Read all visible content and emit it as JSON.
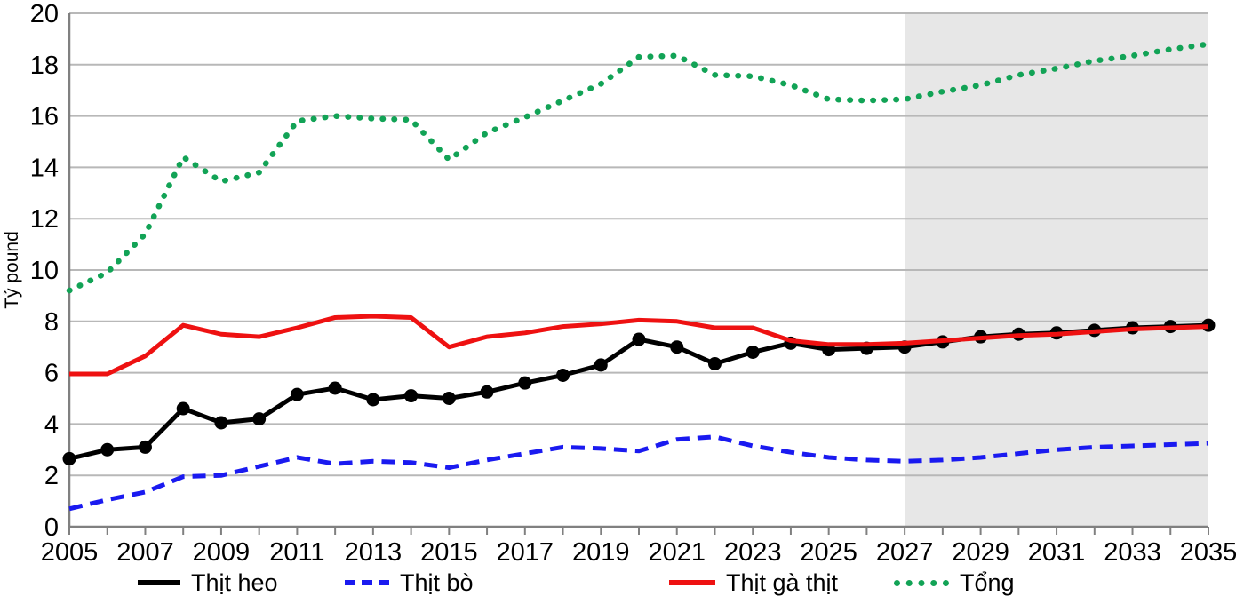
{
  "chart_data": {
    "type": "line",
    "title": "",
    "xlabel": "",
    "ylabel": "Tỷ pound",
    "ylim": [
      0,
      20
    ],
    "ytick_step": 2,
    "grid": true,
    "legend_position": "bottom",
    "x": [
      2005,
      2006,
      2007,
      2008,
      2009,
      2010,
      2011,
      2012,
      2013,
      2014,
      2015,
      2016,
      2017,
      2018,
      2019,
      2020,
      2021,
      2022,
      2023,
      2024,
      2025,
      2026,
      2027,
      2028,
      2029,
      2030,
      2031,
      2032,
      2033,
      2034,
      2035
    ],
    "xtick_labels": [
      "2005",
      "2007",
      "2009",
      "2011",
      "2013",
      "2015",
      "2017",
      "2019",
      "2021",
      "2023",
      "2025",
      "2027",
      "2029",
      "2031",
      "2033",
      "2035"
    ],
    "forecast_band": {
      "start": 2027,
      "end": 2035,
      "color": "#E7E7E7"
    },
    "axis_color": "#808080",
    "gridline_color": "#B8B8B8",
    "series": [
      {
        "name": "Thịt heo",
        "color": "#000000",
        "style": "solid-marker",
        "values": [
          2.65,
          3.0,
          3.1,
          4.6,
          4.05,
          4.2,
          5.15,
          5.4,
          4.95,
          5.1,
          5.0,
          5.25,
          5.6,
          5.9,
          6.3,
          7.3,
          7.0,
          6.35,
          6.8,
          7.15,
          6.9,
          6.95,
          7.0,
          7.2,
          7.4,
          7.5,
          7.55,
          7.65,
          7.75,
          7.8,
          7.85
        ]
      },
      {
        "name": "Thịt bò",
        "color": "#1A1AF0",
        "style": "dashed",
        "values": [
          0.7,
          1.05,
          1.35,
          1.95,
          2.0,
          2.35,
          2.7,
          2.45,
          2.55,
          2.5,
          2.3,
          2.6,
          2.85,
          3.1,
          3.05,
          2.95,
          3.4,
          3.5,
          3.15,
          2.9,
          2.7,
          2.6,
          2.55,
          2.6,
          2.7,
          2.85,
          3.0,
          3.1,
          3.15,
          3.2,
          3.25
        ]
      },
      {
        "name": "Thịt gà thịt",
        "color": "#EE1111",
        "style": "solid",
        "values": [
          5.95,
          5.95,
          6.65,
          7.85,
          7.5,
          7.4,
          7.75,
          8.15,
          8.2,
          8.15,
          7.0,
          7.4,
          7.55,
          7.8,
          7.9,
          8.05,
          8.0,
          7.75,
          7.75,
          7.25,
          7.1,
          7.1,
          7.15,
          7.25,
          7.35,
          7.45,
          7.5,
          7.6,
          7.7,
          7.75,
          7.8
        ]
      },
      {
        "name": "Tổng",
        "color": "#12A356",
        "style": "dotted",
        "values": [
          9.2,
          9.9,
          11.4,
          14.4,
          13.45,
          13.8,
          15.8,
          16.0,
          15.9,
          15.85,
          14.3,
          15.35,
          15.95,
          16.6,
          17.25,
          18.3,
          18.35,
          17.6,
          17.55,
          17.2,
          16.65,
          16.6,
          16.65,
          16.95,
          17.2,
          17.6,
          17.85,
          18.15,
          18.35,
          18.6,
          18.8
        ]
      }
    ]
  }
}
